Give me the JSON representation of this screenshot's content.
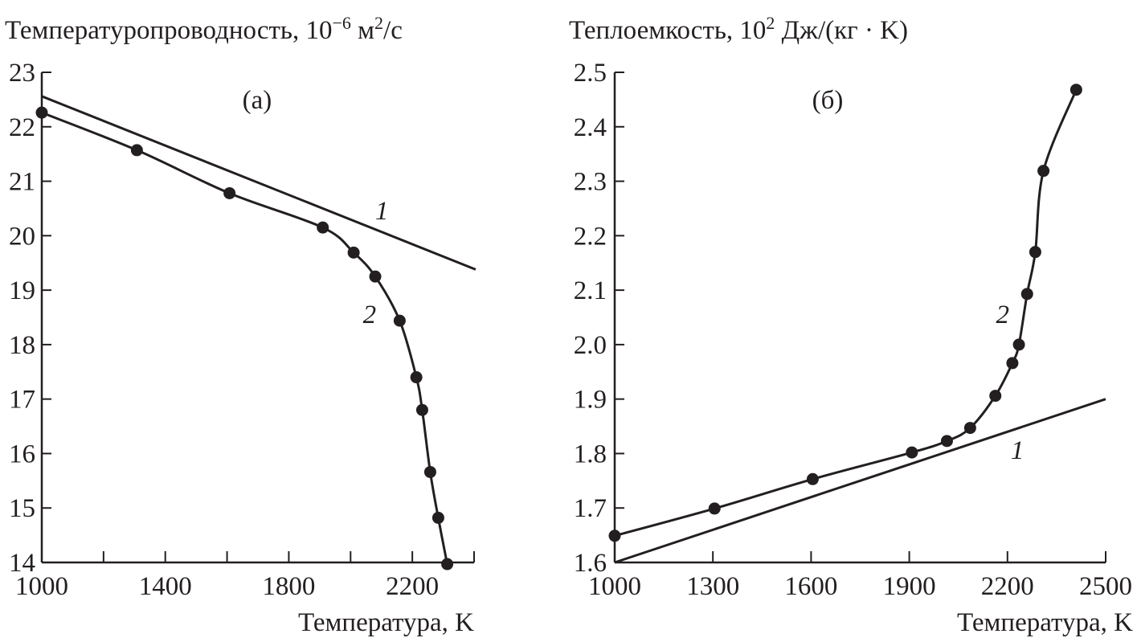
{
  "chart_data": [
    {
      "type": "line",
      "panel_label": "(а)",
      "ylabel_parts": [
        "Температуропроводность, 10",
        "−6",
        " м",
        "2",
        "/с"
      ],
      "xlabel": "Температура, K",
      "xlim": [
        1000,
        2400
      ],
      "ylim": [
        14,
        23
      ],
      "xticks": [
        1000,
        1200,
        1400,
        1600,
        1800,
        2000,
        2200,
        2400
      ],
      "xtick_labels": [
        "1000",
        "",
        "1400",
        "",
        "1800",
        "",
        "2200",
        ""
      ],
      "yticks": [
        14,
        15,
        16,
        17,
        18,
        19,
        20,
        21,
        22,
        23
      ],
      "series": [
        {
          "name": "1",
          "markers": false,
          "x": [
            1000,
            2405
          ],
          "y": [
            22.56,
            19.38
          ],
          "label_at": [
            2080,
            20.3
          ]
        },
        {
          "name": "2",
          "markers": true,
          "x": [
            1000,
            1308,
            1608,
            1910,
            2010,
            2080,
            2159,
            2213,
            2232,
            2258,
            2284,
            2313
          ],
          "y": [
            22.26,
            21.57,
            20.78,
            20.15,
            19.69,
            19.25,
            18.44,
            17.4,
            16.8,
            15.66,
            14.82,
            13.97
          ],
          "label_at": [
            2040,
            18.4
          ]
        }
      ]
    },
    {
      "type": "line",
      "panel_label": "(б)",
      "ylabel_parts": [
        "Теплоемкость, 10",
        "2",
        " Дж/(кг · K)",
        "",
        ""
      ],
      "xlabel": "Температура, K",
      "xlim": [
        1000,
        2500
      ],
      "ylim": [
        1.6,
        2.5
      ],
      "xticks": [
        1000,
        1300,
        1600,
        1900,
        2200,
        2500
      ],
      "xtick_labels": [
        "1000",
        "1300",
        "1600",
        "1900",
        "2200",
        "2500"
      ],
      "yticks": [
        1.6,
        1.7,
        1.8,
        1.9,
        2.0,
        2.1,
        2.2,
        2.3,
        2.4,
        2.5
      ],
      "ytick_labels": [
        "1.6",
        "1.7",
        "1.8",
        "1.9",
        "2.0",
        "2.1",
        "2.2",
        "2.3",
        "2.4",
        "2.5"
      ],
      "series": [
        {
          "name": "1",
          "markers": false,
          "x": [
            1000,
            2500
          ],
          "y": [
            1.6,
            1.9
          ],
          "label_at": [
            2210,
            1.79
          ]
        },
        {
          "name": "2",
          "markers": true,
          "x": [
            1000,
            1305,
            1605,
            1908,
            2015,
            2086,
            2163,
            2215,
            2235,
            2260,
            2285,
            2310,
            2410
          ],
          "y": [
            1.649,
            1.699,
            1.753,
            1.802,
            1.823,
            1.847,
            1.906,
            1.966,
            2.0,
            2.093,
            2.17,
            2.319,
            2.468
          ],
          "label_at": [
            2165,
            2.04
          ]
        }
      ]
    }
  ]
}
